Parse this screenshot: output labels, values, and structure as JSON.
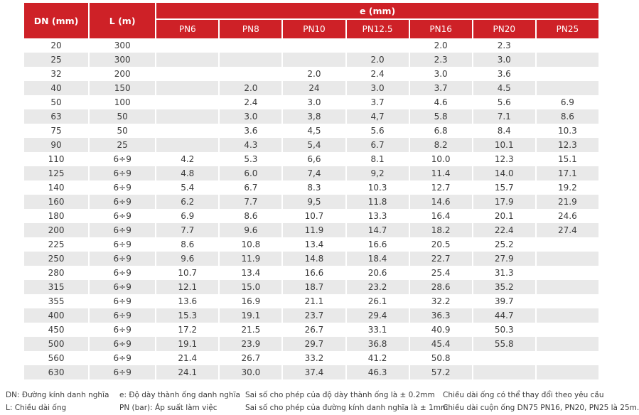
{
  "colors": {
    "header_red": "#ce2127",
    "stripe": "#e9e9e9",
    "text": "#3a3a3a"
  },
  "table": {
    "header": {
      "dn": "DN (mm)",
      "l": "L (m)",
      "e": "e (mm)",
      "pn_columns": [
        "PN6",
        "PN8",
        "PN10",
        "PN12.5",
        "PN16",
        "PN20",
        "PN25"
      ]
    },
    "rows": [
      {
        "dn": "20",
        "l": "300",
        "e": [
          "",
          "",
          "",
          "",
          "2.0",
          "2.3",
          ""
        ]
      },
      {
        "dn": "25",
        "l": "300",
        "e": [
          "",
          "",
          "",
          "2.0",
          "2.3",
          "3.0",
          ""
        ]
      },
      {
        "dn": "32",
        "l": "200",
        "e": [
          "",
          "",
          "2.0",
          "2.4",
          "3.0",
          "3.6",
          ""
        ]
      },
      {
        "dn": "40",
        "l": "150",
        "e": [
          "",
          "2.0",
          "24",
          "3.0",
          "3.7",
          "4.5",
          ""
        ]
      },
      {
        "dn": "50",
        "l": "100",
        "e": [
          "",
          "2.4",
          "3.0",
          "3.7",
          "4.6",
          "5.6",
          "6.9"
        ]
      },
      {
        "dn": "63",
        "l": "50",
        "e": [
          "",
          "3.0",
          "3,8",
          "4,7",
          "5.8",
          "7.1",
          "8.6"
        ]
      },
      {
        "dn": "75",
        "l": "50",
        "e": [
          "",
          "3.6",
          "4,5",
          "5.6",
          "6.8",
          "8.4",
          "10.3"
        ]
      },
      {
        "dn": "90",
        "l": "25",
        "e": [
          "",
          "4.3",
          "5,4",
          "6.7",
          "8.2",
          "10.1",
          "12.3"
        ]
      },
      {
        "dn": "110",
        "l": "6÷9",
        "e": [
          "4.2",
          "5.3",
          "6,6",
          "8.1",
          "10.0",
          "12.3",
          "15.1"
        ]
      },
      {
        "dn": "125",
        "l": "6÷9",
        "e": [
          "4.8",
          "6.0",
          "7,4",
          "9,2",
          "11.4",
          "14.0",
          "17.1"
        ]
      },
      {
        "dn": "140",
        "l": "6÷9",
        "e": [
          "5.4",
          "6.7",
          "8.3",
          "10.3",
          "12.7",
          "15.7",
          "19.2"
        ]
      },
      {
        "dn": "160",
        "l": "6÷9",
        "e": [
          "6.2",
          "7.7",
          "9,5",
          "11.8",
          "14.6",
          "17.9",
          "21.9"
        ]
      },
      {
        "dn": "180",
        "l": "6÷9",
        "e": [
          "6.9",
          "8.6",
          "10.7",
          "13.3",
          "16.4",
          "20.1",
          "24.6"
        ]
      },
      {
        "dn": "200",
        "l": "6÷9",
        "e": [
          "7.7",
          "9.6",
          "11.9",
          "14.7",
          "18.2",
          "22.4",
          "27.4"
        ]
      },
      {
        "dn": "225",
        "l": "6÷9",
        "e": [
          "8.6",
          "10.8",
          "13.4",
          "16.6",
          "20.5",
          "25.2",
          ""
        ]
      },
      {
        "dn": "250",
        "l": "6÷9",
        "e": [
          "9.6",
          "11.9",
          "14.8",
          "18.4",
          "22.7",
          "27.9",
          ""
        ]
      },
      {
        "dn": "280",
        "l": "6÷9",
        "e": [
          "10.7",
          "13.4",
          "16.6",
          "20.6",
          "25.4",
          "31.3",
          ""
        ]
      },
      {
        "dn": "315",
        "l": "6÷9",
        "e": [
          "12.1",
          "15.0",
          "18.7",
          "23.2",
          "28.6",
          "35.2",
          ""
        ]
      },
      {
        "dn": "355",
        "l": "6÷9",
        "e": [
          "13.6",
          "16.9",
          "21.1",
          "26.1",
          "32.2",
          "39.7",
          ""
        ]
      },
      {
        "dn": "400",
        "l": "6÷9",
        "e": [
          "15.3",
          "19.1",
          "23.7",
          "29.4",
          "36.3",
          "44.7",
          ""
        ]
      },
      {
        "dn": "450",
        "l": "6÷9",
        "e": [
          "17.2",
          "21.5",
          "26.7",
          "33.1",
          "40.9",
          "50.3",
          ""
        ]
      },
      {
        "dn": "500",
        "l": "6÷9",
        "e": [
          "19.1",
          "23.9",
          "29.7",
          "36.8",
          "45.4",
          "55.8",
          ""
        ]
      },
      {
        "dn": "560",
        "l": "6÷9",
        "e": [
          "21.4",
          "26.7",
          "33.2",
          "41.2",
          "50.8",
          "",
          ""
        ]
      },
      {
        "dn": "630",
        "l": "6÷9",
        "e": [
          "24.1",
          "30.0",
          "37.4",
          "46.3",
          "57.2",
          "",
          ""
        ]
      }
    ]
  },
  "notes": {
    "col1": [
      "DN: Đường kính danh nghĩa",
      "L: Chiều dài ống"
    ],
    "col2": [
      "e: Độ dày thành ống danh nghĩa",
      "PN (bar): Áp suất làm việc"
    ],
    "col3": [
      "Sai số cho phép của độ dày thành ống là ± 0.2mm",
      "Sai số cho phép của đường kính danh nghĩa là ± 1mm"
    ],
    "col4": [
      "Chiều dài ống có thể thay đổi theo yêu cầu",
      "Chiều dài cuộn ống DN75 PN16, PN20, PN25 là 25m."
    ]
  }
}
